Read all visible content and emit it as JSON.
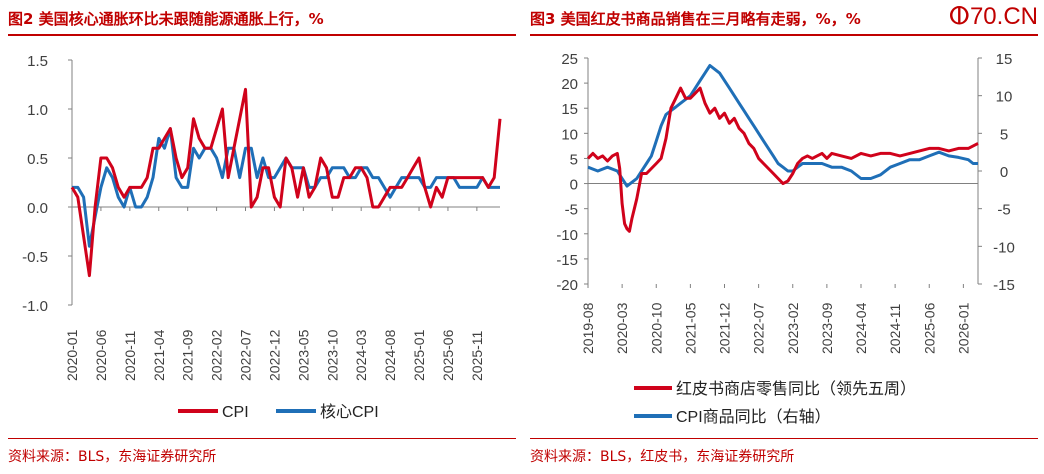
{
  "watermark": "ⵀ70.CN",
  "charts": [
    {
      "title": "图2  美国核心通胀环比未跟随能源通胀上行，%",
      "source": "资料来源：BLS，东海证券研究所"
    },
    {
      "title": "图3  美国红皮书商品销售在三月略有走弱，%，%",
      "source": "资料来源：BLS，红皮书，东海证券研究所"
    }
  ],
  "colors": {
    "red": "#d0021b",
    "blue": "#1f6fb7",
    "accent": "#c00000"
  },
  "chart_data": [
    {
      "type": "line",
      "title": "图2  美国核心通胀环比未跟随能源通胀上行，%",
      "ylim": [
        -1.0,
        1.5
      ],
      "yticks": [
        "1.5",
        "1.0",
        "0.5",
        "0.0",
        "-0.5",
        "-1.0"
      ],
      "ytick_values": [
        1.5,
        1.0,
        0.5,
        0.0,
        -0.5,
        -1.0
      ],
      "xticks": [
        "2020-01",
        "2020-06",
        "2020-11",
        "2021-04",
        "2021-09",
        "2022-02",
        "2022-07",
        "2022-12",
        "2023-05",
        "2023-10",
        "2024-03",
        "2024-08",
        "2025-01",
        "2025-06",
        "2025-11"
      ],
      "xtick_index": [
        0,
        5,
        10,
        15,
        20,
        25,
        30,
        35,
        40,
        45,
        50,
        55,
        60,
        65,
        70
      ],
      "n_points": 75,
      "series": [
        {
          "name": "CPI",
          "color": "#d0021b",
          "values": [
            0.2,
            0.1,
            -0.3,
            -0.7,
            0.0,
            0.5,
            0.5,
            0.4,
            0.2,
            0.1,
            0.2,
            0.2,
            0.2,
            0.3,
            0.6,
            0.6,
            0.7,
            0.8,
            0.5,
            0.3,
            0.4,
            0.9,
            0.7,
            0.6,
            0.6,
            0.8,
            1.0,
            0.3,
            0.6,
            0.9,
            1.2,
            0.0,
            0.1,
            0.4,
            0.4,
            0.1,
            0.0,
            0.5,
            0.4,
            0.1,
            0.4,
            0.1,
            0.2,
            0.5,
            0.4,
            0.1,
            0.1,
            0.3,
            0.3,
            0.4,
            0.4,
            0.3,
            0.0,
            0.0,
            0.1,
            0.2,
            0.2,
            0.2,
            0.3,
            0.4,
            0.5,
            0.2,
            0.0,
            0.2,
            0.1,
            0.3,
            0.3,
            0.3,
            0.3,
            0.3,
            0.3,
            0.3,
            0.2,
            0.3,
            0.9
          ]
        },
        {
          "name": "核心CPI",
          "color": "#1f6fb7",
          "values": [
            0.2,
            0.2,
            0.1,
            -0.4,
            -0.1,
            0.2,
            0.4,
            0.3,
            0.1,
            0.0,
            0.2,
            0.0,
            0.0,
            0.1,
            0.3,
            0.7,
            0.6,
            0.8,
            0.3,
            0.2,
            0.2,
            0.6,
            0.5,
            0.6,
            0.6,
            0.5,
            0.3,
            0.6,
            0.6,
            0.3,
            0.6,
            0.6,
            0.3,
            0.5,
            0.3,
            0.3,
            0.4,
            0.5,
            0.4,
            0.4,
            0.4,
            0.2,
            0.2,
            0.3,
            0.3,
            0.4,
            0.4,
            0.4,
            0.3,
            0.3,
            0.4,
            0.4,
            0.3,
            0.3,
            0.2,
            0.1,
            0.2,
            0.3,
            0.3,
            0.3,
            0.3,
            0.2,
            0.2,
            0.3,
            0.3,
            0.3,
            0.3,
            0.2,
            0.2,
            0.2,
            0.2,
            0.3,
            0.2,
            0.2,
            0.2
          ]
        }
      ],
      "legend": [
        "CPI",
        "核心CPI"
      ],
      "legend_position": "bottom"
    },
    {
      "type": "line",
      "title": "图3  美国红皮书商品销售在三月略有走弱，%，%",
      "ylim": [
        -20,
        25
      ],
      "yticks": [
        "25",
        "20",
        "15",
        "10",
        "5",
        "0",
        "-5",
        "-10",
        "-15",
        "-20"
      ],
      "ytick_values": [
        25,
        20,
        15,
        10,
        5,
        0,
        -5,
        -10,
        -15,
        -20
      ],
      "y2lim": [
        -15,
        15
      ],
      "y2ticks": [
        "15",
        "10",
        "5",
        "0",
        "-5",
        "-10",
        "-15"
      ],
      "y2tick_values": [
        15,
        10,
        5,
        0,
        -5,
        -10,
        -15
      ],
      "xticks": [
        "2019-08",
        "2020-03",
        "2020-10",
        "2021-05",
        "2021-12",
        "2022-07",
        "2023-02",
        "2023-09",
        "2024-04",
        "2024-11",
        "2025-06",
        "2026-01"
      ],
      "x_start": "2019-08",
      "x_end": "2026-04",
      "series": [
        {
          "name": "红皮书商店零售同比（领先五周）",
          "color": "#d0021b",
          "axis": "left",
          "x": [
            0,
            1,
            2,
            3,
            4,
            5,
            6,
            6.5,
            7,
            7.5,
            8,
            8.5,
            9,
            10,
            11,
            12,
            13,
            14,
            15,
            16,
            17,
            18,
            19,
            20,
            21,
            22,
            23,
            24,
            25,
            26,
            27,
            28,
            29,
            30,
            31,
            32,
            33,
            34,
            35,
            36,
            37,
            38,
            39,
            40,
            41,
            42,
            43,
            44,
            45,
            46,
            47,
            48,
            49,
            50,
            52,
            54,
            56,
            58,
            60,
            62,
            64,
            66,
            68,
            70,
            72,
            74,
            76,
            78,
            80
          ],
          "values": [
            5,
            6,
            5,
            5.5,
            4.5,
            5.5,
            6,
            3,
            -4,
            -8,
            -9,
            -9.5,
            -7,
            -3,
            2,
            2,
            3,
            4,
            5,
            9,
            15,
            17,
            19,
            17,
            17,
            18,
            19,
            16,
            14,
            15,
            13,
            14,
            12,
            13,
            11,
            10,
            8,
            7,
            5,
            4,
            3,
            2,
            1,
            0,
            0.5,
            2,
            4,
            5,
            5.5,
            5,
            5.5,
            6,
            5,
            6,
            5.5,
            5,
            6,
            5.5,
            6,
            6,
            5.5,
            6,
            6.5,
            7,
            7,
            6.5,
            7,
            7,
            8
          ]
        },
        {
          "name": "CPI商品同比（右轴）",
          "color": "#1f6fb7",
          "axis": "right",
          "x": [
            0,
            2,
            4,
            6,
            7,
            8,
            9,
            10,
            11,
            12,
            13,
            14,
            15,
            16,
            17,
            18,
            19,
            20,
            21,
            22,
            23,
            24,
            25,
            26,
            27,
            28,
            29,
            30,
            31,
            32,
            33,
            34,
            35,
            36,
            37,
            38,
            39,
            40,
            41,
            42,
            43,
            44,
            46,
            48,
            50,
            52,
            54,
            56,
            58,
            60,
            62,
            64,
            66,
            68,
            70,
            72,
            74,
            76,
            78,
            79,
            80
          ],
          "values": [
            0.5,
            0,
            0.5,
            0,
            -1,
            -2,
            -1.5,
            -1,
            0,
            1,
            2,
            4,
            6,
            7.5,
            8,
            8.5,
            9,
            9.5,
            10,
            11,
            12,
            13,
            14,
            13.5,
            13,
            12,
            11,
            10,
            9,
            8,
            7,
            6,
            5,
            4,
            3,
            2,
            1,
            0.5,
            0,
            0,
            0.5,
            1,
            1,
            1,
            0.5,
            0.5,
            0,
            -1,
            -1,
            -0.5,
            0.5,
            1,
            1.5,
            1.5,
            2,
            2.5,
            2,
            1.8,
            1.5,
            1,
            1
          ]
        }
      ],
      "legend": [
        "红皮书商店零售同比（领先五周）",
        "CPI商品同比（右轴）"
      ],
      "legend_position": "bottom"
    }
  ]
}
